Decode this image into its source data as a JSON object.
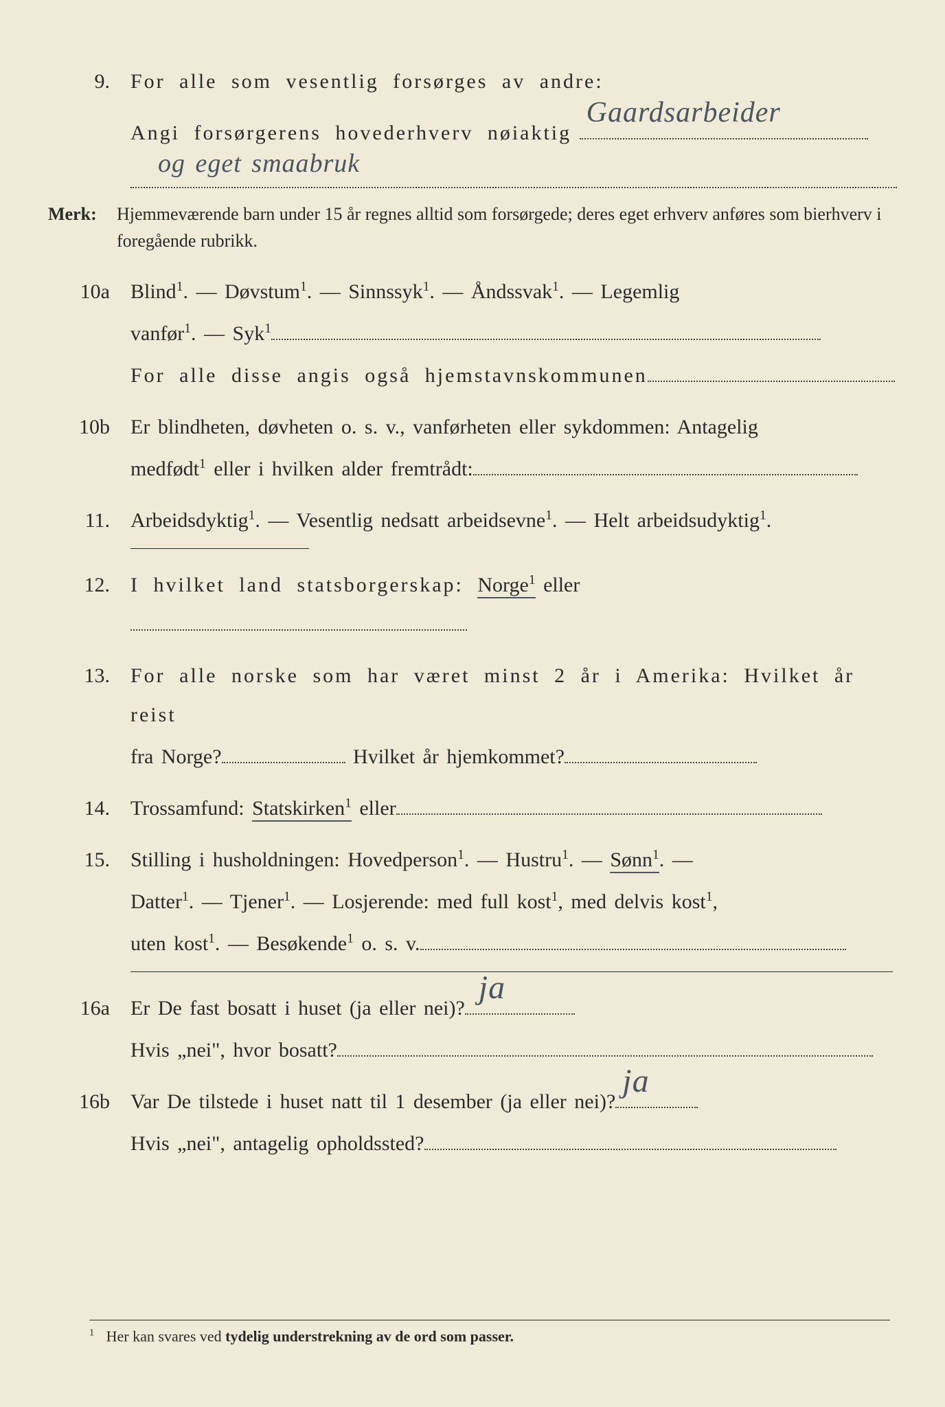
{
  "q9": {
    "num": "9.",
    "line1": "For alle som vesentlig forsørges av andre:",
    "line2_prefix": "Angi forsørgerens hovederhverv nøiaktig",
    "handwritten1": "Gaardsarbeider",
    "handwritten2": "og eget smaabruk"
  },
  "merk": {
    "label": "Merk:",
    "text": "Hjemmeværende barn under 15 år regnes alltid som forsørgede; deres eget erhverv anføres som bierhverv i foregående rubrikk."
  },
  "q10a": {
    "num": "10a",
    "line1": "Blind¹.  —  Døvstum¹.  —  Sinnssyk¹.  —  Åndssvak¹.  —  Legemlig",
    "line2_prefix": "vanfør¹.  —  Syk¹",
    "line3": "For alle disse angis også hjemstavnskommunen"
  },
  "q10b": {
    "num": "10b",
    "line1": "Er blindheten, døvheten o. s. v., vanførheten eller sykdommen: Antagelig",
    "line2_prefix": "medfødt¹ eller i hvilken alder fremtrådt:"
  },
  "q11": {
    "num": "11.",
    "text": "Arbeidsdyktig¹. — Vesentlig nedsatt arbeidsevne¹. — Helt arbeidsudyktig¹."
  },
  "q12": {
    "num": "12.",
    "prefix": "I hvilket land statsborgerskap: ",
    "underlined": "Norge¹",
    "suffix": " eller"
  },
  "q13": {
    "num": "13.",
    "line1": "For alle norske som har været minst 2 år i Amerika: Hvilket år reist",
    "line2a": "fra Norge?",
    "line2b": " Hvilket år hjemkommet?"
  },
  "q14": {
    "num": "14.",
    "prefix": "Trossamfund: ",
    "underlined": "Statskirken¹",
    "suffix": " eller"
  },
  "q15": {
    "num": "15.",
    "line1a": "Stilling i husholdningen: Hovedperson¹.  —  Hustru¹.  — ",
    "line1_underlined": "Sønn¹",
    "line1b": ".  —",
    "line2": "Datter¹.  —  Tjener¹.  —  Losjerende: med full kost¹, med delvis kost¹,",
    "line3_prefix": "uten kost¹.  —  Besøkende¹ o. s. v."
  },
  "q16a": {
    "num": "16a",
    "line1_prefix": "Er De fast bosatt i huset (ja eller nei)?",
    "handwritten": "ja",
    "line2_prefix": "Hvis „nei\", hvor bosatt?"
  },
  "q16b": {
    "num": "16b",
    "line1_prefix": "Var De tilstede i huset natt til 1 desember (ja eller nei)?",
    "handwritten": "ja",
    "line2_prefix": "Hvis „nei\", antagelig opholdssted?"
  },
  "footnote": {
    "marker": "1",
    "text_a": "Her kan svares ved ",
    "text_b": "tydelig understrekning av de ord som passer."
  }
}
